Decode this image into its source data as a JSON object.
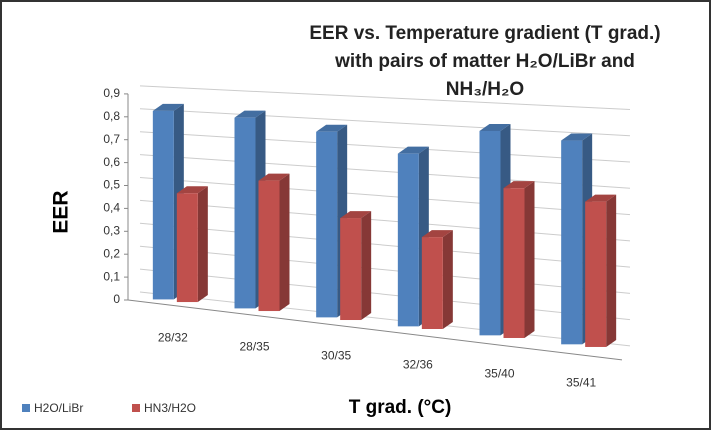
{
  "chart_data": {
    "type": "bar3d",
    "title": "EER vs. Temperature gradient (T grad.) with pairs of matter H₂O/LiBr and NH₃/H₂O",
    "x_label": "T grad. (°C)",
    "y_label": "EER",
    "categories": [
      "28/32",
      "28/35",
      "30/35",
      "32/36",
      "35/40",
      "35/41"
    ],
    "series": [
      {
        "name": "H2O/LiBr",
        "color": "#4f81bd",
        "values": [
          0.82,
          0.81,
          0.77,
          0.7,
          0.81,
          0.79
        ]
      },
      {
        "name": "HN3/H2O",
        "color": "#c0504d",
        "values": [
          0.47,
          0.55,
          0.42,
          0.37,
          0.59,
          0.56
        ]
      }
    ],
    "ylim": [
      0,
      0.9
    ],
    "yticks": [
      0,
      {
        "value": 0.1,
        "label": "0,1"
      },
      {
        "value": 0.2,
        "label": "0,2"
      },
      {
        "value": 0.3,
        "label": "0,3"
      },
      {
        "value": 0.4,
        "label": "0,4"
      },
      {
        "value": 0.5,
        "label": "0,5"
      },
      {
        "value": 0.6,
        "label": "0,6"
      },
      {
        "value": 0.7,
        "label": "0,7"
      },
      {
        "value": 0.8,
        "label": "0,8"
      },
      {
        "value": 0.9,
        "label": "0,9"
      }
    ],
    "grid": true,
    "legend": "bottom-left"
  }
}
